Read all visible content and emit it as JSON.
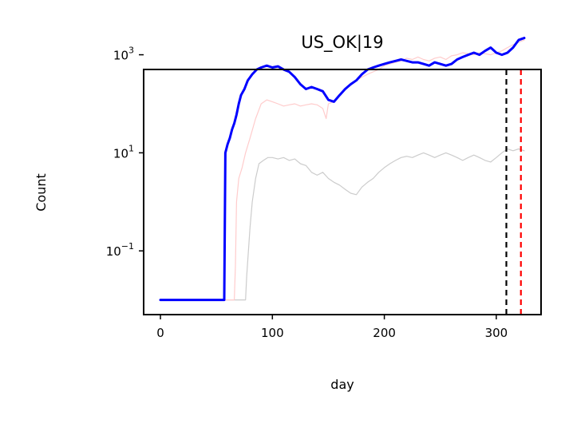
{
  "chart_data": {
    "type": "line",
    "title": "US_OK|19",
    "xlabel": "day",
    "ylabel": "Count",
    "xlim": [
      -15,
      340
    ],
    "y_scale": "log",
    "ylim_log10": [
      -2.3,
      2.7
    ],
    "x_ticks": [
      {
        "value": 0,
        "label": "0"
      },
      {
        "value": 100,
        "label": "100"
      },
      {
        "value": 200,
        "label": "200"
      },
      {
        "value": 300,
        "label": "300"
      }
    ],
    "y_ticks": [
      {
        "log10": 3,
        "base": "10",
        "exp": "3"
      },
      {
        "log10": 1,
        "base": "10",
        "exp": "1"
      },
      {
        "log10": -1,
        "base": "10",
        "exp": "−1"
      }
    ],
    "grid": false,
    "vlines": [
      {
        "x": 309,
        "color": "#000000",
        "style": "dashed"
      },
      {
        "x": 322,
        "color": "#ff0000",
        "style": "dashed"
      }
    ],
    "series": [
      {
        "color": "#cccccc",
        "linewidth": 1.2,
        "points": [
          [
            0,
            0.01
          ],
          [
            50,
            0.01
          ],
          [
            76,
            0.01
          ],
          [
            77,
            0.03
          ],
          [
            80,
            0.3
          ],
          [
            82,
            1
          ],
          [
            85,
            3
          ],
          [
            88,
            6
          ],
          [
            92,
            7
          ],
          [
            96,
            8
          ],
          [
            100,
            8
          ],
          [
            105,
            7.5
          ],
          [
            110,
            8
          ],
          [
            115,
            7
          ],
          [
            120,
            7.5
          ],
          [
            125,
            6
          ],
          [
            130,
            5.5
          ],
          [
            135,
            4
          ],
          [
            140,
            3.5
          ],
          [
            145,
            4
          ],
          [
            150,
            3
          ],
          [
            155,
            2.5
          ],
          [
            160,
            2.2
          ],
          [
            165,
            1.8
          ],
          [
            170,
            1.5
          ],
          [
            175,
            1.4
          ],
          [
            180,
            2
          ],
          [
            185,
            2.5
          ],
          [
            190,
            3
          ],
          [
            195,
            4
          ],
          [
            200,
            5
          ],
          [
            205,
            6
          ],
          [
            210,
            7
          ],
          [
            215,
            8
          ],
          [
            220,
            8.5
          ],
          [
            225,
            8
          ],
          [
            230,
            9
          ],
          [
            235,
            10
          ],
          [
            240,
            9
          ],
          [
            245,
            8
          ],
          [
            250,
            9
          ],
          [
            255,
            10
          ],
          [
            260,
            9
          ],
          [
            265,
            8
          ],
          [
            270,
            7
          ],
          [
            275,
            8
          ],
          [
            280,
            9
          ],
          [
            285,
            8
          ],
          [
            290,
            7
          ],
          [
            295,
            6.5
          ],
          [
            300,
            8
          ],
          [
            305,
            10
          ],
          [
            310,
            12
          ],
          [
            315,
            11
          ],
          [
            320,
            12
          ],
          [
            325,
            11
          ]
        ]
      },
      {
        "color": "#ffcccc",
        "linewidth": 1.2,
        "points": [
          [
            0,
            0.01
          ],
          [
            50,
            0.01
          ],
          [
            66,
            0.01
          ],
          [
            67,
            0.05
          ],
          [
            68,
            1
          ],
          [
            70,
            3
          ],
          [
            73,
            5
          ],
          [
            76,
            10
          ],
          [
            80,
            20
          ],
          [
            85,
            50
          ],
          [
            90,
            100
          ],
          [
            95,
            120
          ],
          [
            100,
            110
          ],
          [
            105,
            100
          ],
          [
            110,
            90
          ],
          [
            115,
            95
          ],
          [
            120,
            100
          ],
          [
            125,
            90
          ],
          [
            130,
            95
          ],
          [
            135,
            100
          ],
          [
            140,
            95
          ],
          [
            145,
            80
          ],
          [
            148,
            50
          ],
          [
            150,
            100
          ],
          [
            155,
            110
          ],
          [
            160,
            150
          ],
          [
            165,
            200
          ],
          [
            170,
            250
          ],
          [
            175,
            300
          ],
          [
            180,
            350
          ],
          [
            185,
            400
          ],
          [
            190,
            450
          ],
          [
            195,
            500
          ],
          [
            200,
            600
          ],
          [
            205,
            650
          ],
          [
            210,
            700
          ],
          [
            215,
            750
          ],
          [
            220,
            850
          ],
          [
            225,
            800
          ],
          [
            230,
            900
          ],
          [
            235,
            800
          ],
          [
            240,
            750
          ],
          [
            245,
            850
          ],
          [
            250,
            900
          ],
          [
            255,
            800
          ],
          [
            260,
            950
          ],
          [
            265,
            1000
          ],
          [
            270,
            1100
          ],
          [
            275,
            1050
          ],
          [
            280,
            1000
          ],
          [
            285,
            1100
          ],
          [
            290,
            1050
          ],
          [
            295,
            1000
          ],
          [
            300,
            1100
          ],
          [
            305,
            1200
          ],
          [
            310,
            1400
          ],
          [
            315,
            1600
          ],
          [
            320,
            1800
          ],
          [
            325,
            2000
          ]
        ]
      },
      {
        "color": "#0000ff",
        "linewidth": 3,
        "points": [
          [
            0,
            0.01
          ],
          [
            57,
            0.01
          ],
          [
            58,
            10
          ],
          [
            60,
            15
          ],
          [
            62,
            20
          ],
          [
            64,
            30
          ],
          [
            66,
            40
          ],
          [
            68,
            60
          ],
          [
            70,
            100
          ],
          [
            72,
            150
          ],
          [
            75,
            200
          ],
          [
            78,
            300
          ],
          [
            82,
            400
          ],
          [
            86,
            500
          ],
          [
            90,
            550
          ],
          [
            95,
            600
          ],
          [
            100,
            550
          ],
          [
            105,
            580
          ],
          [
            110,
            500
          ],
          [
            115,
            450
          ],
          [
            120,
            350
          ],
          [
            125,
            250
          ],
          [
            130,
            200
          ],
          [
            135,
            220
          ],
          [
            140,
            200
          ],
          [
            145,
            180
          ],
          [
            150,
            120
          ],
          [
            155,
            110
          ],
          [
            160,
            150
          ],
          [
            165,
            200
          ],
          [
            170,
            250
          ],
          [
            175,
            300
          ],
          [
            180,
            400
          ],
          [
            185,
            500
          ],
          [
            190,
            550
          ],
          [
            195,
            600
          ],
          [
            200,
            650
          ],
          [
            205,
            700
          ],
          [
            210,
            750
          ],
          [
            215,
            800
          ],
          [
            220,
            750
          ],
          [
            225,
            700
          ],
          [
            230,
            700
          ],
          [
            235,
            650
          ],
          [
            240,
            600
          ],
          [
            245,
            700
          ],
          [
            250,
            650
          ],
          [
            255,
            600
          ],
          [
            260,
            650
          ],
          [
            265,
            800
          ],
          [
            270,
            900
          ],
          [
            275,
            1000
          ],
          [
            280,
            1100
          ],
          [
            285,
            1000
          ],
          [
            290,
            1200
          ],
          [
            295,
            1400
          ],
          [
            300,
            1100
          ],
          [
            305,
            1000
          ],
          [
            310,
            1100
          ],
          [
            315,
            1400
          ],
          [
            320,
            2000
          ],
          [
            325,
            2200
          ]
        ]
      }
    ]
  }
}
